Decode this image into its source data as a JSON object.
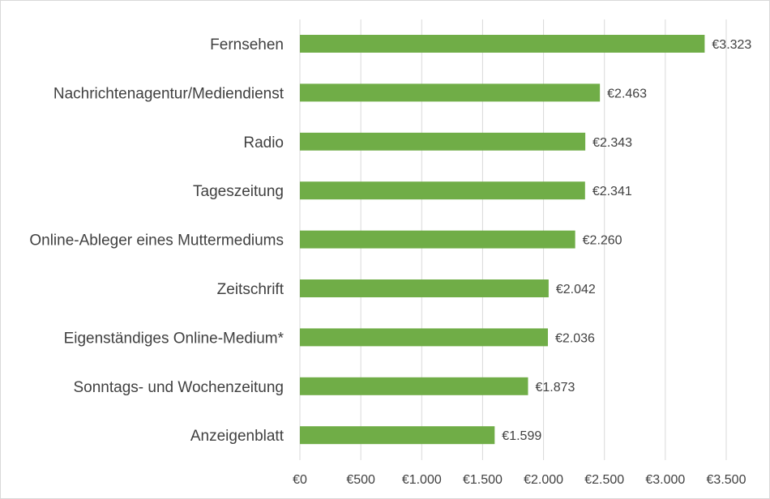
{
  "chart_data": {
    "type": "bar",
    "orientation": "horizontal",
    "categories": [
      "Fernsehen",
      "Nachrichtenagentur/Mediendienst",
      "Radio",
      "Tageszeitung",
      "Online-Ableger eines Muttermediums",
      "Zeitschrift",
      "Eigenständiges Online-Medium*",
      "Sonntags- und Wochenzeitung",
      "Anzeigenblatt"
    ],
    "values": [
      3323,
      2463,
      2343,
      2341,
      2260,
      2042,
      2036,
      1873,
      1599
    ],
    "data_labels": [
      "€3.323",
      "€2.463",
      "€2.343",
      "€2.341",
      "€2.260",
      "€2.042",
      "€2.036",
      "€1.873",
      "€1.599"
    ],
    "xlim": [
      0,
      3500
    ],
    "x_ticks": [
      0,
      500,
      1000,
      1500,
      2000,
      2500,
      3000,
      3500
    ],
    "x_tick_labels": [
      "€0",
      "€500",
      "€1.000",
      "€1.500",
      "€2.000",
      "€2.500",
      "€3.000",
      "€3.500"
    ],
    "grid": true,
    "bar_color": "#70ad47",
    "grid_color": "#d9d9d9",
    "text_color": "#404040"
  }
}
